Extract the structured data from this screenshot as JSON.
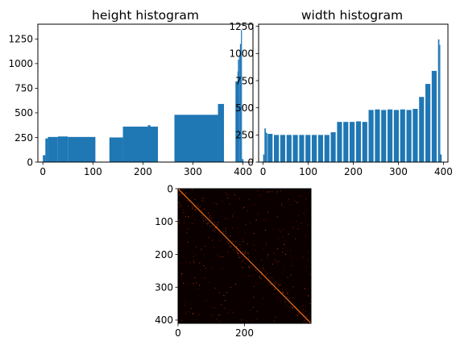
{
  "chart_data": [
    {
      "type": "bar",
      "title": "height histogram",
      "xlabel": "",
      "ylabel": "",
      "xlim": [
        -10,
        420
      ],
      "ylim": [
        0,
        1400
      ],
      "xticks": [
        0,
        100,
        200,
        300,
        400
      ],
      "yticks": [
        0,
        250,
        500,
        750,
        1000,
        1250
      ],
      "grid": false,
      "bar_color": "#1f77b4",
      "bars": [
        {
          "x0": 0,
          "x1": 5,
          "y": 70
        },
        {
          "x0": 5,
          "x1": 10,
          "y": 240
        },
        {
          "x0": 10,
          "x1": 30,
          "y": 255
        },
        {
          "x0": 30,
          "x1": 50,
          "y": 260
        },
        {
          "x0": 50,
          "x1": 105,
          "y": 255
        },
        {
          "x0": 133,
          "x1": 160,
          "y": 250
        },
        {
          "x0": 160,
          "x1": 230,
          "y": 360
        },
        {
          "x0": 210,
          "x1": 215,
          "y": 375
        },
        {
          "x0": 263,
          "x1": 350,
          "y": 480
        },
        {
          "x0": 350,
          "x1": 362,
          "y": 590
        },
        {
          "x0": 385,
          "x1": 390,
          "y": 820
        },
        {
          "x0": 389,
          "x1": 391,
          "y": 920
        },
        {
          "x0": 390,
          "x1": 392,
          "y": 1040
        },
        {
          "x0": 392,
          "x1": 394,
          "y": 1070
        },
        {
          "x0": 394,
          "x1": 396,
          "y": 1200
        },
        {
          "x0": 396,
          "x1": 398,
          "y": 1340
        },
        {
          "x0": 398,
          "x1": 401,
          "y": 30
        }
      ]
    },
    {
      "type": "bar",
      "title": "width histogram",
      "xlabel": "",
      "ylabel": "",
      "xlim": [
        -10,
        410
      ],
      "ylim": [
        0,
        1270
      ],
      "xticks": [
        0,
        100,
        200,
        300,
        400
      ],
      "yticks": [
        0,
        250,
        500,
        750,
        1000,
        1250
      ],
      "grid": false,
      "bar_color": "#1f77b4",
      "bars": [
        {
          "x0": 0,
          "x1": 3,
          "y": 70
        },
        {
          "x0": 3,
          "x1": 6,
          "y": 310
        },
        {
          "x0": 6,
          "x1": 9,
          "y": 270
        },
        {
          "x0": 10,
          "x1": 21,
          "y": 260
        },
        {
          "x0": 24,
          "x1": 35,
          "y": 250
        },
        {
          "x0": 38,
          "x1": 49,
          "y": 250
        },
        {
          "x0": 52,
          "x1": 63,
          "y": 250
        },
        {
          "x0": 66,
          "x1": 77,
          "y": 250
        },
        {
          "x0": 80,
          "x1": 91,
          "y": 250
        },
        {
          "x0": 94,
          "x1": 105,
          "y": 250
        },
        {
          "x0": 108,
          "x1": 119,
          "y": 250
        },
        {
          "x0": 122,
          "x1": 133,
          "y": 250
        },
        {
          "x0": 136,
          "x1": 147,
          "y": 250
        },
        {
          "x0": 150,
          "x1": 161,
          "y": 275
        },
        {
          "x0": 164,
          "x1": 175,
          "y": 370
        },
        {
          "x0": 178,
          "x1": 189,
          "y": 370
        },
        {
          "x0": 192,
          "x1": 203,
          "y": 370
        },
        {
          "x0": 206,
          "x1": 217,
          "y": 375
        },
        {
          "x0": 220,
          "x1": 231,
          "y": 370
        },
        {
          "x0": 234,
          "x1": 245,
          "y": 480
        },
        {
          "x0": 248,
          "x1": 259,
          "y": 485
        },
        {
          "x0": 262,
          "x1": 273,
          "y": 480
        },
        {
          "x0": 276,
          "x1": 287,
          "y": 485
        },
        {
          "x0": 290,
          "x1": 301,
          "y": 480
        },
        {
          "x0": 304,
          "x1": 315,
          "y": 485
        },
        {
          "x0": 318,
          "x1": 329,
          "y": 480
        },
        {
          "x0": 332,
          "x1": 343,
          "y": 490
        },
        {
          "x0": 346,
          "x1": 357,
          "y": 600
        },
        {
          "x0": 360,
          "x1": 371,
          "y": 720
        },
        {
          "x0": 374,
          "x1": 385,
          "y": 840
        },
        {
          "x0": 388,
          "x1": 391,
          "y": 1130
        },
        {
          "x0": 391,
          "x1": 393,
          "y": 1080
        },
        {
          "x0": 393,
          "x1": 396,
          "y": 70
        }
      ]
    },
    {
      "type": "heatmap",
      "title": "",
      "xlim": [
        0,
        400
      ],
      "ylim": [
        410,
        0
      ],
      "xticks": [
        0,
        200
      ],
      "yticks": [
        0,
        100,
        200,
        300,
        400
      ],
      "colormap": "hot",
      "background_color": "#0a0000",
      "structure": "diagonal-dominant sparse matrix with scattered off-diagonal entries"
    }
  ]
}
